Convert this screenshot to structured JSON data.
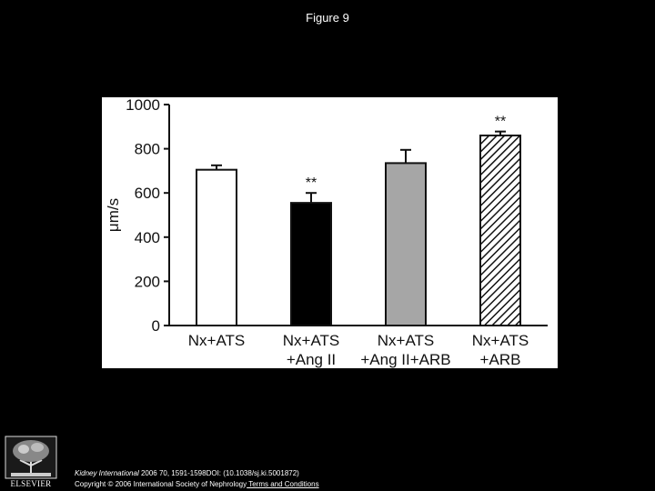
{
  "figure_title": "Figure 9",
  "citation": {
    "journal": "Kidney International",
    "details": " 2006 70, 1591-1598DOI: (10.1038/sj.ki.5001872)",
    "copyright": "Copyright © 2006 International Society of Nephrology",
    "terms_link": " Terms and Conditions"
  },
  "logo": {
    "text": "ELSEVIER",
    "icon": "elsevier-tree-logo"
  },
  "chart_data": {
    "type": "bar",
    "ylabel": "μm/s",
    "ylim": [
      0,
      1000
    ],
    "yticks": [
      0,
      200,
      400,
      600,
      800,
      1000
    ],
    "grid": false,
    "categories": [
      [
        "Nx+ATS"
      ],
      [
        "Nx+ATS",
        "+Ang II"
      ],
      [
        "Nx+ATS",
        "+Ang II+ARB"
      ],
      [
        "Nx+ATS",
        "+ARB"
      ]
    ],
    "values": [
      705,
      555,
      735,
      860
    ],
    "errors": [
      20,
      45,
      60,
      18
    ],
    "annotations": [
      "",
      "**",
      "",
      "**"
    ],
    "bar_styles": [
      "white",
      "black",
      "gray",
      "hatched"
    ],
    "colors": {
      "white": "#ffffff",
      "black": "#000000",
      "gray": "#a6a6a6",
      "outline": "#111111"
    }
  }
}
